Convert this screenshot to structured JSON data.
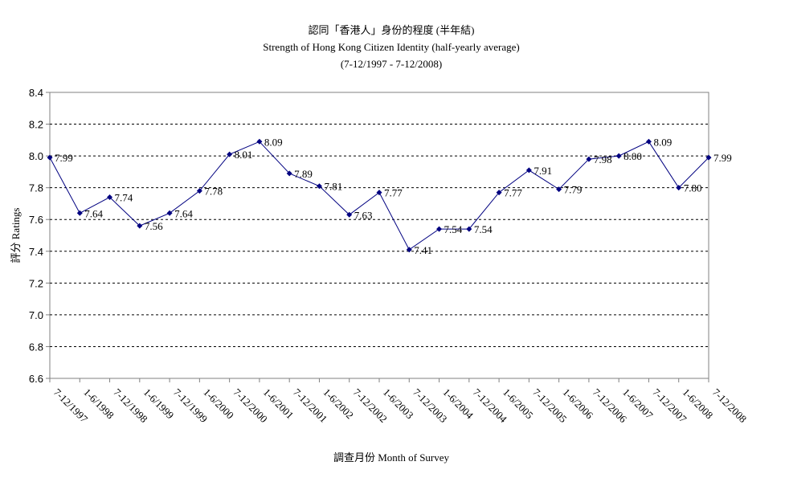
{
  "chart_data": {
    "type": "line",
    "title": "認同「香港人」身份的程度 (半年結)",
    "subtitle": "Strength of Hong Kong Citizen Identity (half-yearly average)",
    "subtitle2": "(7-12/1997 - 7-12/2008)",
    "x_label": "調查月份 Month of Survey",
    "y_label": "評分 Ratings",
    "categories": [
      "7-12/1997",
      "1-6/1998",
      "7-12/1998",
      "1-6/1999",
      "7-12/1999",
      "1-6/2000",
      "7-12/2000",
      "1-6/2001",
      "7-12/2001",
      "1-6/2002",
      "7-12/2002",
      "1-6/2003",
      "7-12/2003",
      "1-6/2004",
      "7-12/2004",
      "1-6/2005",
      "7-12/2005",
      "1-6/2006",
      "7-12/2006",
      "1-6/2007",
      "7-12/2007",
      "1-6/2008",
      "7-12/2008"
    ],
    "values": [
      7.99,
      7.64,
      7.74,
      7.56,
      7.64,
      7.78,
      8.01,
      8.09,
      7.89,
      7.81,
      7.63,
      7.77,
      7.41,
      7.54,
      7.54,
      7.77,
      7.91,
      7.79,
      7.98,
      8,
      8.09,
      7.8,
      7.99
    ],
    "value_labels": [
      "7.99",
      "7.64",
      "7.74",
      "7.56",
      "7.64",
      "7.78",
      "8.01",
      "8.09",
      "7.89",
      "7.81",
      "7.63",
      "7.77",
      "7.41",
      "7.54",
      "7.54",
      "7.77",
      "7.91",
      "7.79",
      "7.98",
      "8.00",
      "8.09",
      "7.80",
      "7.99"
    ],
    "color": "#000080",
    "ylim": [
      6.6,
      8.4
    ],
    "yticks": [
      6.6,
      6.8,
      {
        "value": 7,
        "label": "7.0"
      },
      7.2,
      7.4,
      7.6,
      7.8,
      {
        "value": 8,
        "label": "8.0"
      },
      8.2,
      8.4
    ],
    "grid": true
  }
}
